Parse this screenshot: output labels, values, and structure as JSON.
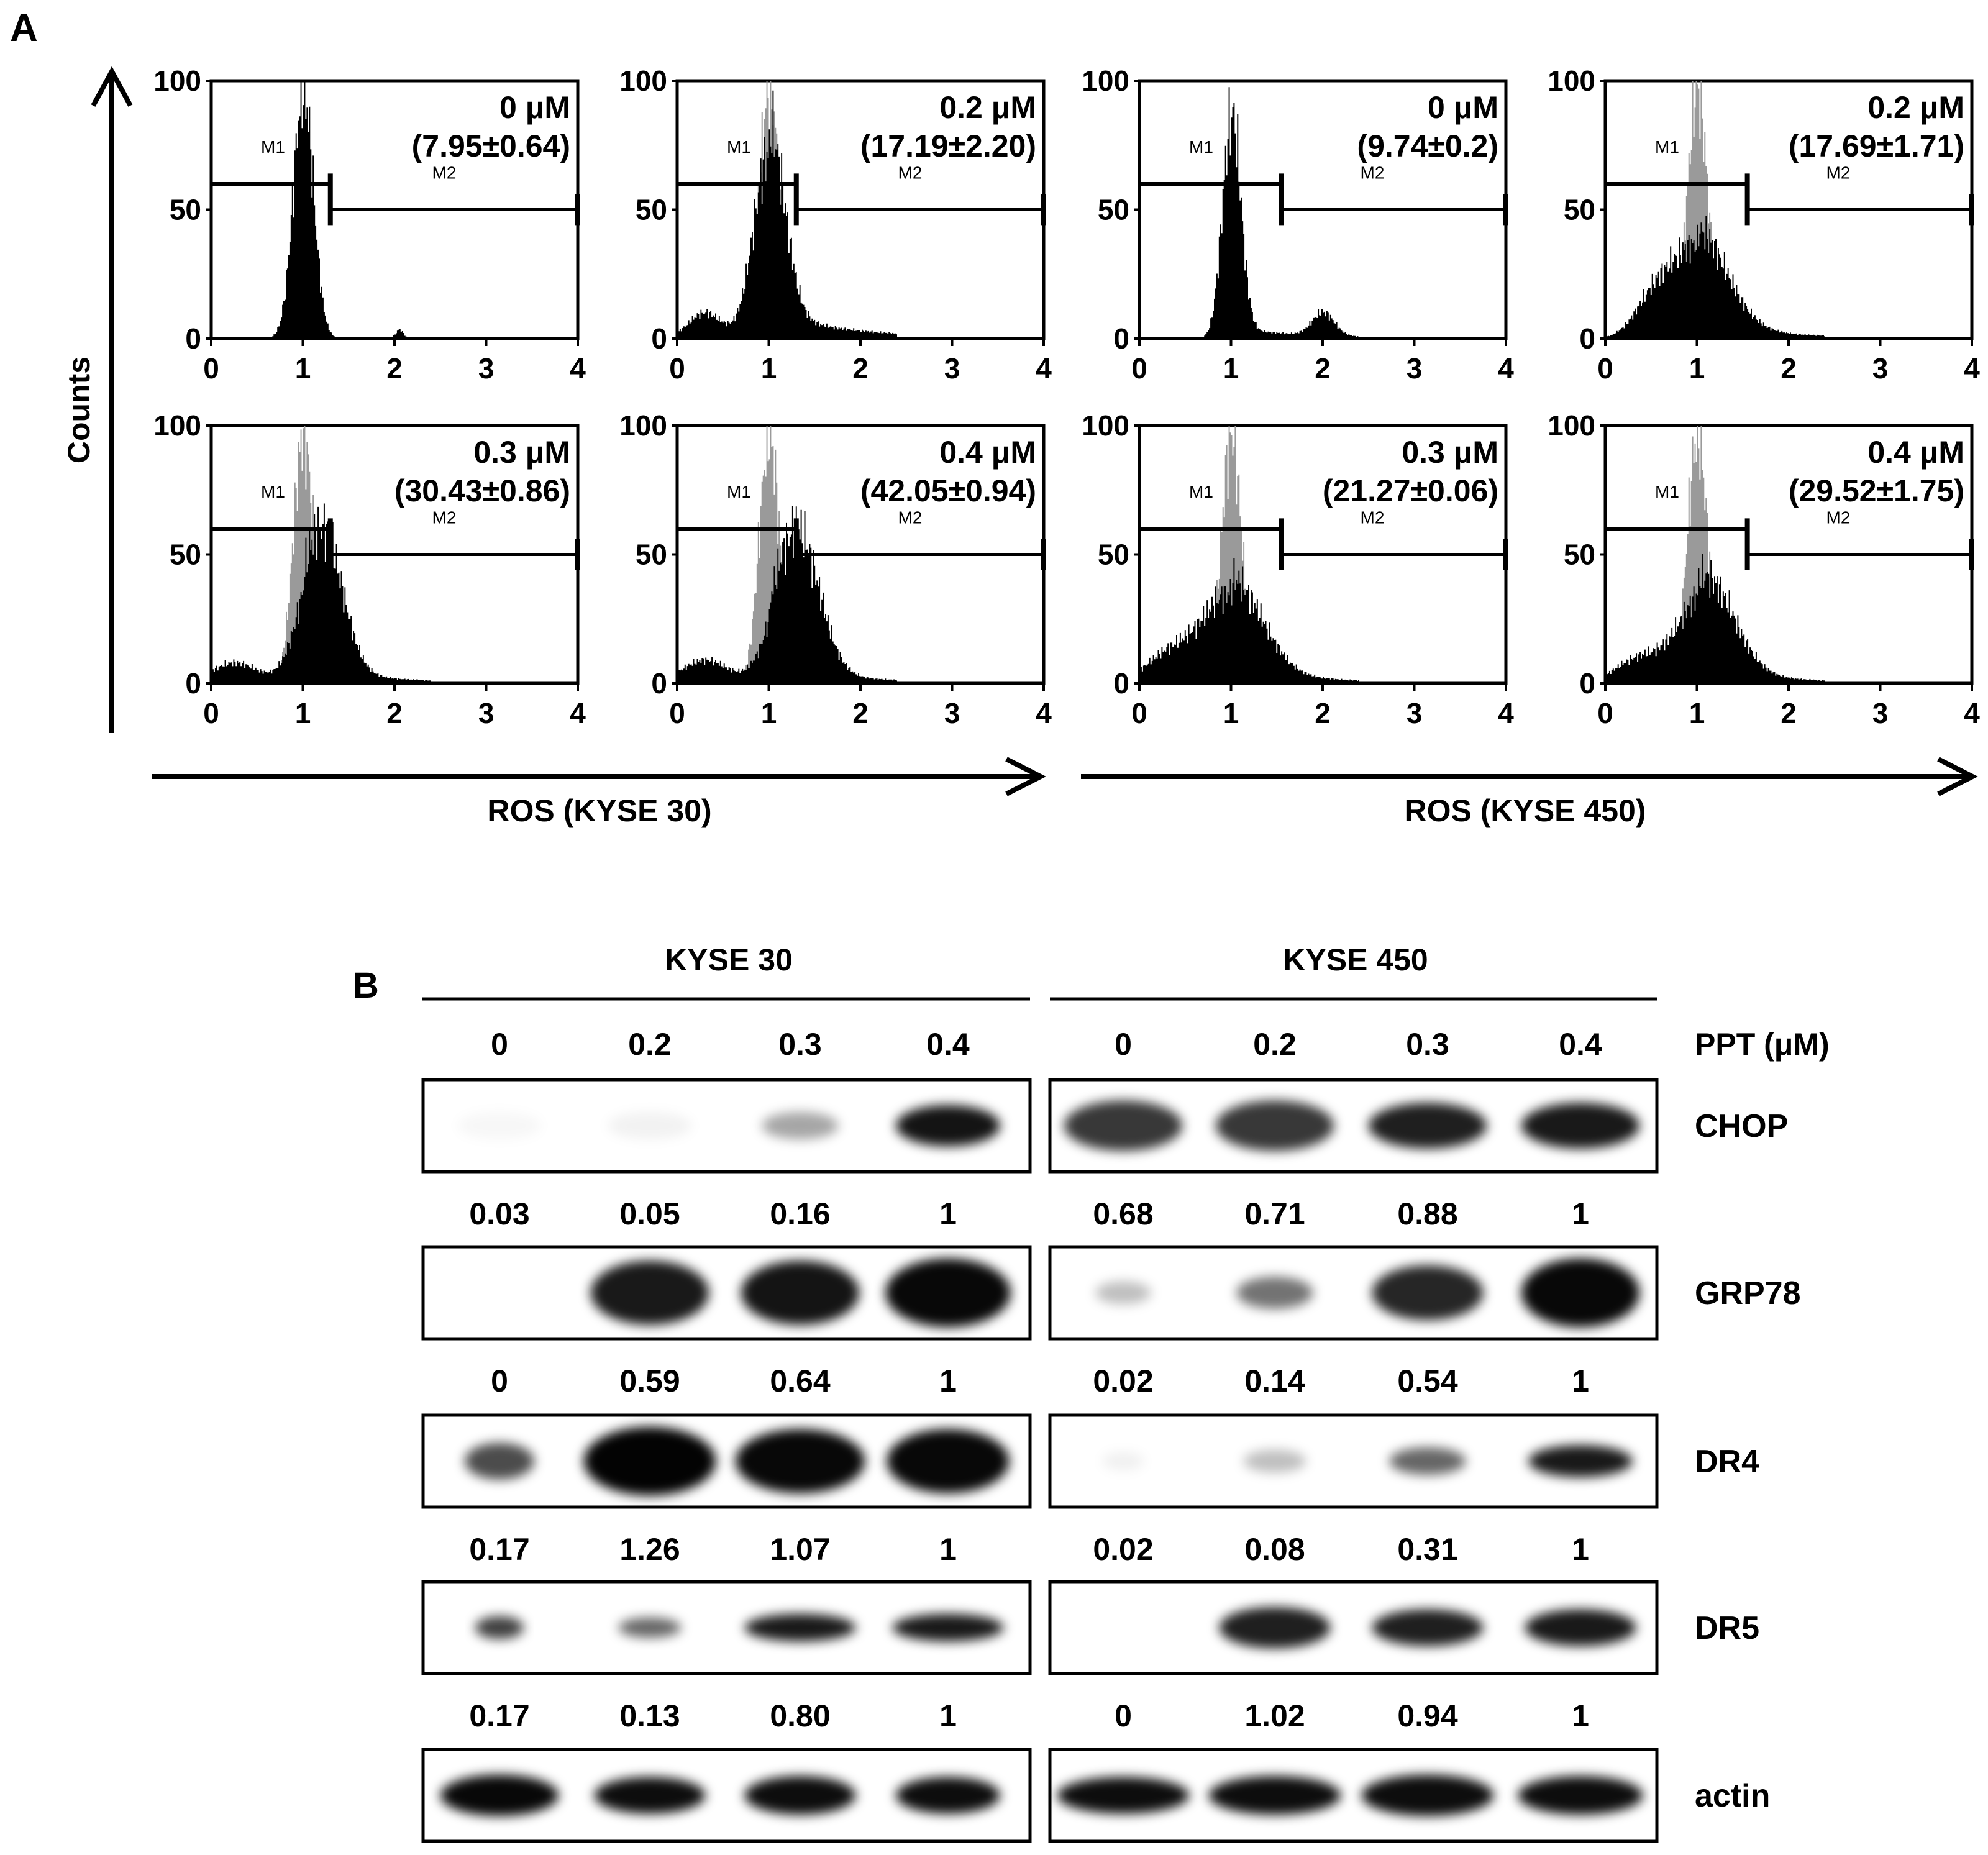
{
  "panel_a": {
    "label": "A",
    "y_axis_title": "Counts",
    "x_axis_left": "ROS (KYSE 30)",
    "x_axis_right": "ROS (KYSE 450)",
    "y_ticks": [
      "100",
      "50",
      "0"
    ],
    "x_ticks": [
      "0",
      "1",
      "2",
      "3",
      "4"
    ],
    "marker_m1": "M1",
    "marker_m2": "M2",
    "plots": [
      {
        "dose": "0 μM",
        "value": "(7.95±0.64)"
      },
      {
        "dose": "0.2 μM",
        "value": "(17.19±2.20)"
      },
      {
        "dose": "0 μM",
        "value": "(9.74±0.2)"
      },
      {
        "dose": "0.2 μM",
        "value": "(17.69±1.71)"
      },
      {
        "dose": "0.3 μM",
        "value": "(30.43±0.86)"
      },
      {
        "dose": "0.4 μM",
        "value": "(42.05±0.94)"
      },
      {
        "dose": "0.3 μM",
        "value": "(21.27±0.06)"
      },
      {
        "dose": "0.4 μM",
        "value": "(29.52±1.75)"
      }
    ]
  },
  "panel_b": {
    "label": "B",
    "cell_lines": [
      "KYSE 30",
      "KYSE 450"
    ],
    "treatment_label": "PPT (μM)",
    "doses": [
      "0",
      "0.2",
      "0.3",
      "0.4",
      "0",
      "0.2",
      "0.3",
      "0.4"
    ],
    "proteins": [
      {
        "name": "CHOP",
        "values": [
          "0.03",
          "0.05",
          "0.16",
          "1",
          "0.68",
          "0.71",
          "0.88",
          "1"
        ]
      },
      {
        "name": "GRP78",
        "values": [
          "0",
          "0.59",
          "0.64",
          "1",
          "0.02",
          "0.14",
          "0.54",
          "1"
        ]
      },
      {
        "name": "DR4",
        "values": [
          "0.17",
          "1.26",
          "1.07",
          "1",
          "0.02",
          "0.08",
          "0.31",
          "1"
        ]
      },
      {
        "name": "DR5",
        "values": [
          "0.17",
          "0.13",
          "0.80",
          "1",
          "0",
          "1.02",
          "0.94",
          "1"
        ]
      },
      {
        "name": "actin",
        "values": []
      }
    ]
  }
}
